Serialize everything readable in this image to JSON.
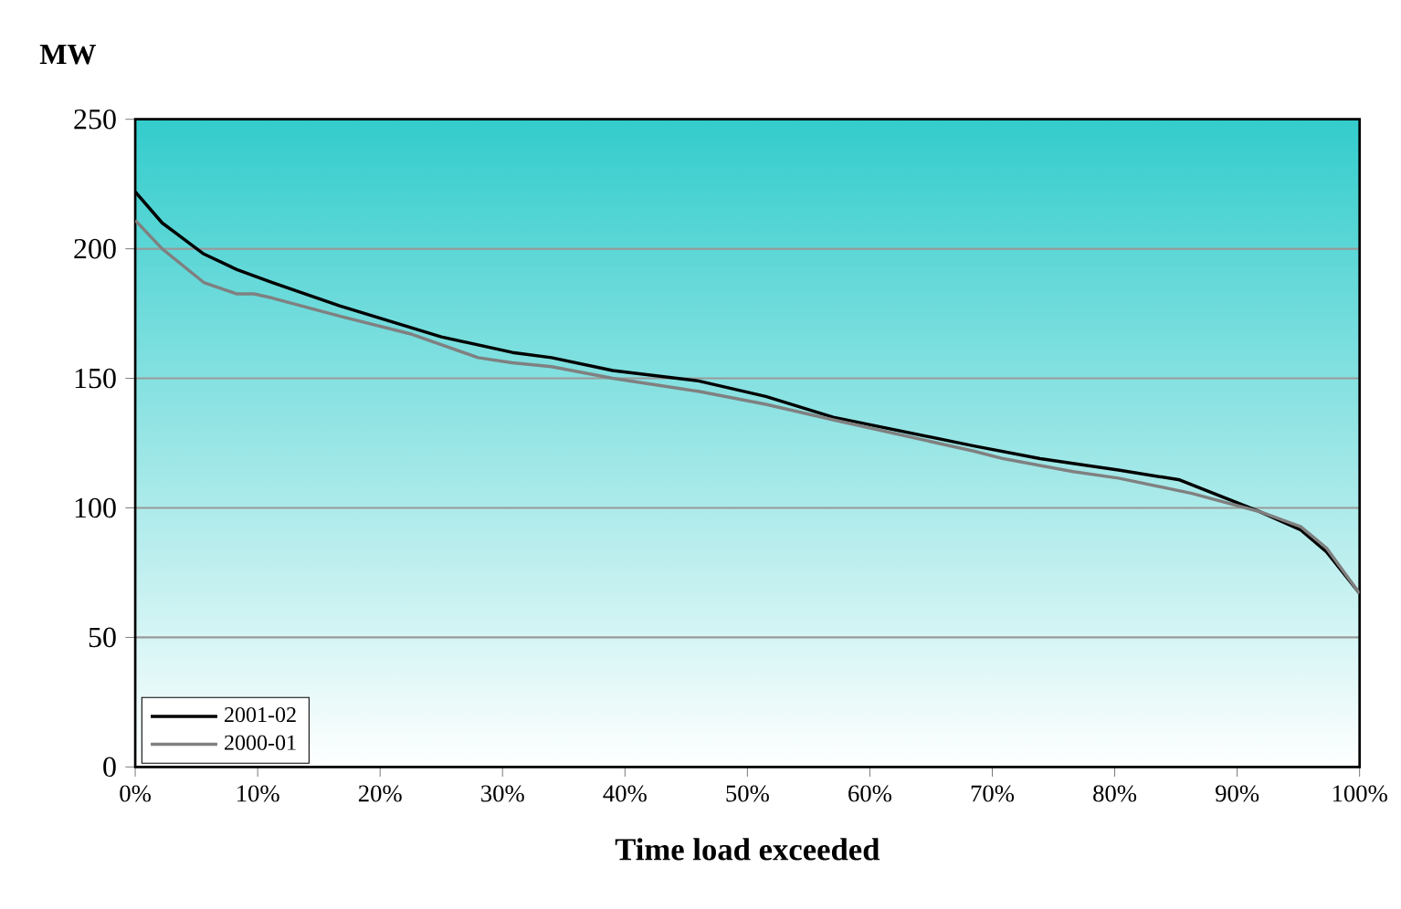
{
  "chart_data": {
    "type": "line",
    "xlabel": "Time load exceeded",
    "ylabel": "MW",
    "xlim": [
      0,
      100
    ],
    "ylim": [
      0,
      250
    ],
    "xticks": [
      {
        "value": 0,
        "label": "0%"
      },
      {
        "value": 10,
        "label": "10%"
      },
      {
        "value": 20,
        "label": "20%"
      },
      {
        "value": 30,
        "label": "30%"
      },
      {
        "value": 40,
        "label": "40%"
      },
      {
        "value": 50,
        "label": "50%"
      },
      {
        "value": 60,
        "label": "60%"
      },
      {
        "value": 70,
        "label": "70%"
      },
      {
        "value": 80,
        "label": "80%"
      },
      {
        "value": 90,
        "label": "90%"
      },
      {
        "value": 100,
        "label": "100%"
      }
    ],
    "yticks": [
      0,
      50,
      100,
      150,
      200,
      250
    ],
    "grid": "y",
    "legend": "bottom left",
    "marker": "none",
    "line_style": "solid",
    "series": [
      {
        "name": "2001-02",
        "color": "#000000",
        "x": [
          0,
          2.2,
          5.6,
          8.3,
          11.2,
          16.7,
          25,
          30.8,
          34,
          39,
          46,
          51.5,
          57,
          68.4,
          73.9,
          80.3,
          85.3,
          91.8,
          95.2,
          97.3,
          100
        ],
        "values": [
          222,
          210,
          198,
          192,
          187,
          178,
          166,
          160,
          158,
          153,
          149,
          143,
          135,
          124,
          119,
          114.6,
          110.8,
          98.6,
          91.5,
          83,
          67
        ]
      },
      {
        "name": "2000-01",
        "color": "#808080",
        "x": [
          0,
          2.2,
          5.6,
          8.3,
          9.7,
          11.2,
          16.7,
          22.6,
          28,
          30.8,
          34,
          39,
          46,
          51.5,
          57,
          68.4,
          70.9,
          76.6,
          80.3,
          86.3,
          91.8,
          95.2,
          97.3,
          100
        ],
        "values": [
          211,
          200,
          187,
          182.6,
          182.6,
          181,
          174,
          167,
          158,
          156,
          154.5,
          150,
          145,
          140,
          134,
          122,
          119,
          114,
          111.5,
          105.6,
          98.6,
          92.7,
          84.5,
          67
        ]
      }
    ]
  }
}
